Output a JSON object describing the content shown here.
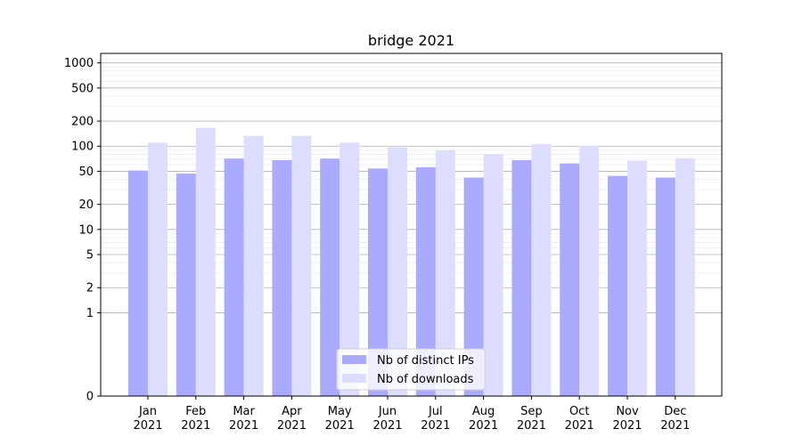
{
  "chart_data": {
    "type": "bar",
    "title": "bridge 2021",
    "xlabel": "",
    "ylabel": "",
    "yscale": "symlog",
    "ylim": [
      0,
      1300
    ],
    "yticks": [
      0,
      1,
      2,
      5,
      10,
      20,
      50,
      100,
      200,
      500,
      1000
    ],
    "categories": [
      [
        "Jan",
        "2021"
      ],
      [
        "Feb",
        "2021"
      ],
      [
        "Mar",
        "2021"
      ],
      [
        "Apr",
        "2021"
      ],
      [
        "May",
        "2021"
      ],
      [
        "Jun",
        "2021"
      ],
      [
        "Jul",
        "2021"
      ],
      [
        "Aug",
        "2021"
      ],
      [
        "Sep",
        "2021"
      ],
      [
        "Oct",
        "2021"
      ],
      [
        "Nov",
        "2021"
      ],
      [
        "Dec",
        "2021"
      ]
    ],
    "series": [
      {
        "name": "Nb of distinct IPs",
        "color": "#aaaaff",
        "values": [
          51,
          47,
          71,
          68,
          71,
          54,
          56,
          42,
          68,
          62,
          44,
          42
        ]
      },
      {
        "name": "Nb of downloads",
        "color": "#ddddff",
        "values": [
          110,
          166,
          133,
          133,
          110,
          97,
          89,
          80,
          106,
          101,
          67,
          72
        ]
      }
    ],
    "grid": true,
    "legend_position": "bottom-center"
  }
}
